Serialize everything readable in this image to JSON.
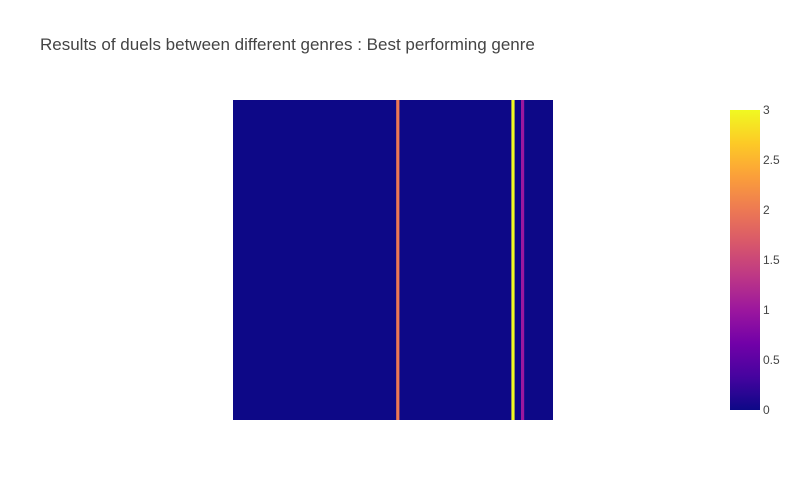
{
  "chart_data": {
    "type": "heatmap",
    "title": "Results of duels between different genres : Best performing genre",
    "grid": false,
    "legend": "colorbar-right",
    "colorscale": [
      "#0d0887",
      "#46039f",
      "#7201a8",
      "#9c179e",
      "#bd3786",
      "#d8576b",
      "#ed7953",
      "#fb9f3a",
      "#fdca26",
      "#f0f921"
    ],
    "zmin": 0,
    "zmax": 3,
    "colorbar": {
      "ticks": [
        0,
        0.5,
        1,
        1.5,
        2,
        2.5,
        3
      ],
      "tick_labels": [
        "0",
        "0.5",
        "1",
        "1.5",
        "2",
        "2.5",
        "3"
      ]
    },
    "n_cols": 100,
    "n_rows": 100,
    "columns": [
      {
        "col": 51,
        "value": 2
      },
      {
        "col": 87,
        "value": 3
      },
      {
        "col": 90,
        "value": 1
      }
    ]
  }
}
